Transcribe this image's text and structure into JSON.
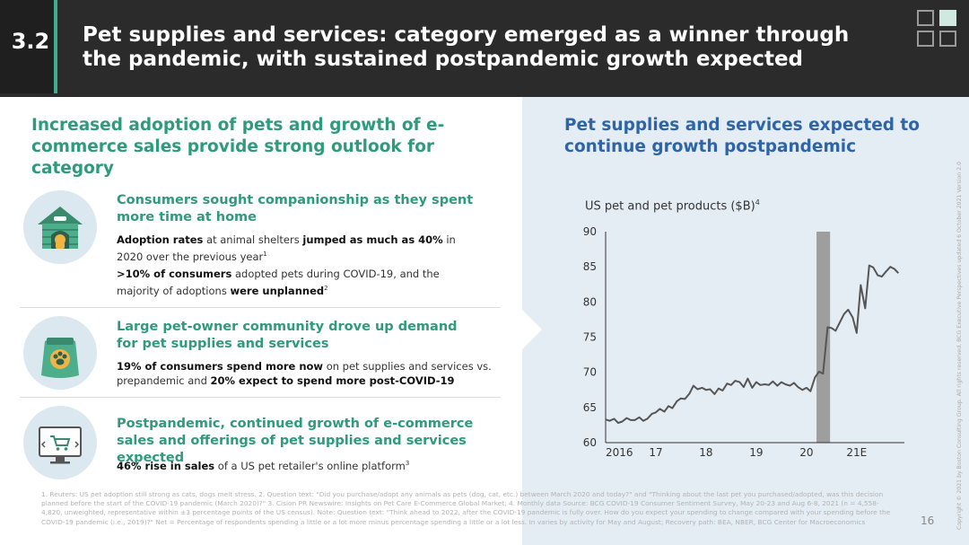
{
  "header": {
    "section_number": "3.2",
    "title": "Pet supplies and services: category emerged as a winner through the pandemic, with sustained postpandemic growth expected"
  },
  "left": {
    "heading": "Increased adoption of pets and growth of e-commerce sales provide strong outlook for category",
    "blocks": [
      {
        "icon": "doghouse-icon",
        "title": "Consumers sought companionship as they spent more time at home",
        "p1_parts": [
          "Adoption rates",
          " at animal shelters ",
          "jumped as much as 40%",
          " in 2020 over the previous year",
          "1"
        ],
        "p2_parts": [
          ">10% of consumers",
          " adopted pets during COVID-19, and the majority of adoptions ",
          "were unplanned",
          "2"
        ]
      },
      {
        "icon": "pet-food-bag-icon",
        "title": "Large pet-owner community drove up demand for pet supplies and services",
        "p1_parts": [
          "19% of consumers spend more now",
          " on pet supplies and services vs. prepandemic and ",
          "20% expect to spend more post-COVID-19"
        ]
      },
      {
        "icon": "online-shopping-icon",
        "title": "Postpandemic, continued growth of e-commerce sales and offerings of pet supplies and services expected",
        "p1_parts": [
          "46% rise in sales",
          " of a US pet retailer's online platform",
          "3"
        ]
      }
    ]
  },
  "right": {
    "heading": "Pet supplies and services expected to continue growth postpandemic"
  },
  "chart_data": {
    "type": "line",
    "title": "",
    "ylabel": "US pet and pet products ($B)",
    "ylabel_note": "4",
    "xlabel": "",
    "ylim": [
      60,
      90
    ],
    "yticks": [
      90,
      85,
      80,
      75,
      70,
      65,
      60
    ],
    "xlim": [
      2016.0,
      2021.95
    ],
    "xticks": [
      {
        "value": 2016.0,
        "label": "2016"
      },
      {
        "value": 2017.0,
        "label": "17"
      },
      {
        "value": 2018.0,
        "label": "18"
      },
      {
        "value": 2019.0,
        "label": "19"
      },
      {
        "value": 2020.0,
        "label": "20"
      },
      {
        "value": 2021.0,
        "label": "21E"
      }
    ],
    "highlight_band": {
      "x_start": 2020.2,
      "x_end": 2020.47,
      "color": "#9e9e9e"
    },
    "line_color": "#555555",
    "grid": false,
    "series": [
      {
        "name": "",
        "x": [
          2016.0,
          2016.08,
          2016.17,
          2016.25,
          2016.33,
          2016.42,
          2016.5,
          2016.58,
          2016.67,
          2016.75,
          2016.83,
          2016.92,
          2017.0,
          2017.08,
          2017.17,
          2017.25,
          2017.33,
          2017.42,
          2017.5,
          2017.58,
          2017.67,
          2017.75,
          2017.83,
          2017.92,
          2018.0,
          2018.08,
          2018.17,
          2018.25,
          2018.33,
          2018.42,
          2018.5,
          2018.58,
          2018.67,
          2018.75,
          2018.83,
          2018.92,
          2019.0,
          2019.08,
          2019.17,
          2019.25,
          2019.33,
          2019.42,
          2019.5,
          2019.58,
          2019.67,
          2019.75,
          2019.83,
          2019.92,
          2020.0,
          2020.08,
          2020.17,
          2020.25,
          2020.33,
          2020.42,
          2020.5,
          2020.58,
          2020.67,
          2020.75,
          2020.83,
          2020.92,
          2021.0,
          2021.08,
          2021.17,
          2021.25,
          2021.33,
          2021.42,
          2021.5,
          2021.58,
          2021.67,
          2021.75,
          2021.83
        ],
        "values": [
          63.3,
          63.1,
          63.4,
          62.8,
          63.0,
          63.5,
          63.2,
          63.2,
          63.6,
          63.1,
          63.4,
          64.1,
          64.3,
          64.8,
          64.4,
          65.2,
          64.9,
          65.9,
          66.3,
          66.2,
          67.0,
          68.1,
          67.6,
          67.8,
          67.5,
          67.6,
          66.9,
          67.7,
          67.4,
          68.4,
          68.2,
          68.8,
          68.6,
          67.9,
          69.1,
          67.8,
          68.6,
          68.2,
          68.3,
          68.2,
          68.7,
          68.1,
          68.6,
          68.3,
          68.1,
          68.5,
          67.9,
          67.5,
          67.8,
          67.3,
          69.3,
          70.1,
          69.8,
          76.4,
          76.3,
          75.9,
          77.2,
          78.3,
          78.9,
          77.8,
          75.6,
          82.4,
          79.1,
          85.2,
          84.9,
          83.8,
          83.6,
          84.3,
          85.0,
          84.7,
          84.1
        ]
      }
    ]
  },
  "footnotes": "1. Reuters: US pet adoption still strong as cats, dogs melt stress. 2. Question text: \"Did you purchase/adopt any animals as pets (dog, cat, etc.) between March 2020 and today?\" and \"Thinking about the last pet you purchased/adopted, was this decision planned before the start of the COVID-19 pandemic (March 2020)?\" 3. Cision PR Newswire: Insights on Pet Care E-Commerce Global Market; 4. Monthly data\nSource: BCG COVID-19 Consumer Sentiment Survey, May 20-23 and Aug 6-8, 2021 (n = 4,558-4,820, unweighted, representative within ±3 percentage points of the US census). Note: Question text: \"Think ahead to 2022, after the COVID-19 pandemic is fully over. How do you expect your spending to change compared with your spending before the COVID-19 pandemic (i.e., 2019)?\" Net = Percentage of respondents spending a little or a lot more minus percentage spending a little or a lot less. In varies by activity for May and August; Recovery path: BEA, NBER, BCG Center for Macroeconomics",
  "page_number": "16",
  "copyright": "Copyright © 2021 by Boston Consulting Group. All rights reserved. BCG Executive Perspectives updated 6 October 2021 Version 2.0"
}
